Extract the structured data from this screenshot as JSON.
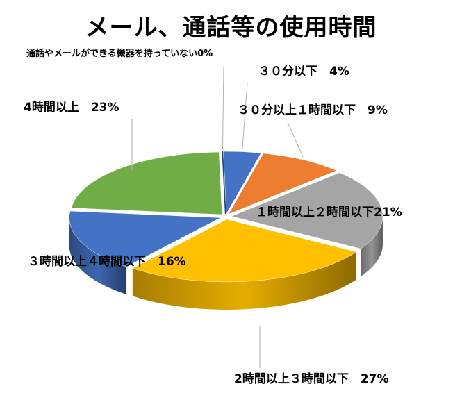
{
  "chart_data": {
    "type": "pie",
    "title": "メール、通話等の使用時間",
    "slices": [
      {
        "label": "通話やメールができる機器を持っていない",
        "value": 0,
        "value_label": "0%",
        "color": "#264478"
      },
      {
        "label": "３０分以下",
        "value": 4,
        "value_label": "4%",
        "color": "#4472C4"
      },
      {
        "label": "３０分以上１時間以下",
        "value": 9,
        "value_label": "9%",
        "color": "#ED7D31"
      },
      {
        "label": "１時間以上２時間以下",
        "value": 21,
        "value_label": "21%",
        "color": "#A5A5A5"
      },
      {
        "label": "2時間以上３時間以下",
        "value": 27,
        "value_label": "27%",
        "color": "#FFC000"
      },
      {
        "label": "３時間以上４時間以下",
        "value": 16,
        "value_label": "16%",
        "color": "#4472C4"
      },
      {
        "label": "4時間以上",
        "value": 23,
        "value_label": "23%",
        "color": "#70AD47"
      }
    ],
    "legend": "none",
    "style": "3d-exploded"
  }
}
